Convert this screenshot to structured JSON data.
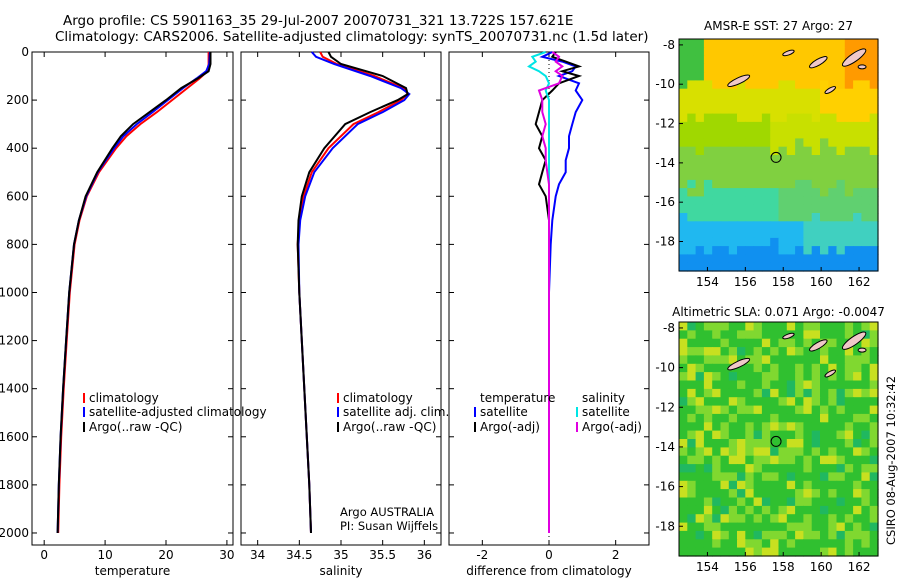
{
  "header": {
    "line1": "Argo profile: CS 5901163_35 29-Jul-2007 20070731_321 13.722S 157.621E",
    "line2": "Climatology: CARS2006. Satellite-adjusted climatology: synTS_20070731.nc (1.5d later)"
  },
  "footer": {
    "credit": "CSIRO 08-Aug-2007 10:32:42"
  },
  "colors": {
    "climatology": "#ff0000",
    "satellite": "#0000ff",
    "argo": "#000000",
    "sat_diff_sal": "#00e5e5",
    "argo_diff_sal": "#e000e0"
  },
  "chart_data": [
    {
      "id": "temperature",
      "type": "line",
      "xlabel": "temperature",
      "ylabel": "",
      "xlim": [
        -2,
        31
      ],
      "ylim": [
        2050,
        0
      ],
      "xticks": [
        0,
        10,
        20,
        30
      ],
      "yticks": [
        0,
        200,
        400,
        600,
        800,
        1000,
        1200,
        1400,
        1600,
        1800,
        2000
      ],
      "legend": [
        "climatology",
        "satellite-adjusted climatology",
        "Argo(..raw -QC)"
      ],
      "depth": [
        0,
        50,
        80,
        110,
        150,
        200,
        250,
        300,
        350,
        400,
        500,
        600,
        700,
        800,
        1000,
        1200,
        1400,
        1600,
        1800,
        2000
      ],
      "series": [
        {
          "name": "climatology",
          "values": [
            27.0,
            27.0,
            26.8,
            25.5,
            23.5,
            21.0,
            18.5,
            15.8,
            13.5,
            11.8,
            9.0,
            7.0,
            5.8,
            5.0,
            4.2,
            3.7,
            3.2,
            2.8,
            2.5,
            2.3
          ]
        },
        {
          "name": "satellite-adjusted climatology",
          "values": [
            27.2,
            27.1,
            26.6,
            25.0,
            22.8,
            20.3,
            17.8,
            15.2,
            13.0,
            11.5,
            8.8,
            6.9,
            5.7,
            4.9,
            4.1,
            3.6,
            3.1,
            2.7,
            2.4,
            2.2
          ]
        },
        {
          "name": "Argo(..raw -QC)",
          "values": [
            27.3,
            27.3,
            27.0,
            25.2,
            22.5,
            20.0,
            17.3,
            14.6,
            12.6,
            11.2,
            8.7,
            6.8,
            5.7,
            4.9,
            4.1,
            3.6,
            3.1,
            2.7,
            2.4,
            2.2
          ]
        }
      ]
    },
    {
      "id": "salinity",
      "type": "line",
      "xlabel": "salinity",
      "ylabel": "",
      "xlim": [
        33.8,
        36.2
      ],
      "ylim": [
        2050,
        0
      ],
      "xticks": [
        34,
        34.5,
        35,
        35.5,
        36
      ],
      "xtick_labels": [
        "34",
        "34.5",
        "35",
        "35.5",
        "36"
      ],
      "legend": [
        "climatology",
        "satellite adj. clim.",
        "Argo(..raw -QC)"
      ],
      "annotation": [
        "Argo AUSTRALIA",
        "PI: Susan Wijffels"
      ],
      "depth": [
        0,
        20,
        50,
        100,
        150,
        175,
        200,
        250,
        300,
        400,
        500,
        600,
        700,
        800,
        1000,
        1200,
        1400,
        1600,
        1800,
        2000
      ],
      "series": [
        {
          "name": "climatology",
          "values": [
            34.75,
            34.78,
            34.95,
            35.4,
            35.75,
            35.8,
            35.72,
            35.45,
            35.15,
            34.85,
            34.65,
            34.55,
            34.5,
            34.48,
            34.5,
            34.53,
            34.56,
            34.59,
            34.62,
            34.64
          ]
        },
        {
          "name": "satellite adj. clim.",
          "values": [
            34.65,
            34.7,
            34.92,
            35.35,
            35.72,
            35.82,
            35.76,
            35.5,
            35.2,
            34.9,
            34.68,
            34.57,
            34.51,
            34.49,
            34.5,
            34.53,
            34.56,
            34.59,
            34.62,
            34.64
          ]
        },
        {
          "name": "Argo(..raw -QC)",
          "values": [
            34.85,
            34.88,
            35.0,
            35.5,
            35.78,
            35.8,
            35.68,
            35.35,
            35.05,
            34.8,
            34.62,
            34.53,
            34.49,
            34.48,
            34.5,
            34.53,
            34.56,
            34.59,
            34.62,
            34.64
          ]
        }
      ]
    },
    {
      "id": "difference",
      "type": "line",
      "xlabel": "difference from climatology",
      "ylabel": "",
      "xlim": [
        -3,
        3
      ],
      "ylim": [
        2050,
        0
      ],
      "xticks": [
        -2,
        0,
        2
      ],
      "legend": [
        "temperature",
        "satellite",
        "Argo(-adj)",
        "salinity",
        "satellite",
        "Argo(-adj)"
      ],
      "depth": [
        0,
        20,
        40,
        60,
        80,
        100,
        130,
        160,
        200,
        250,
        300,
        350,
        400,
        450,
        500,
        550,
        600,
        700,
        800,
        1000,
        1200,
        1500,
        2000
      ],
      "series": [
        {
          "name": "temperature satellite",
          "values": [
            0.1,
            -0.2,
            0.4,
            0.8,
            0.7,
            0.3,
            0.9,
            0.8,
            1.0,
            0.8,
            0.7,
            0.6,
            0.6,
            0.5,
            0.5,
            0.3,
            0.2,
            0.1,
            0.05,
            0.0,
            0.0,
            0.0,
            0.0
          ]
        },
        {
          "name": "temperature Argo(-adj)",
          "values": [
            0.2,
            0.1,
            0.5,
            0.9,
            0.4,
            0.9,
            0.3,
            0.1,
            -0.2,
            -0.3,
            -0.4,
            -0.2,
            -0.3,
            -0.1,
            -0.2,
            -0.3,
            -0.1,
            0.0,
            0.0,
            0.0,
            0.0,
            0.0,
            0.0
          ]
        },
        {
          "name": "salinity satellite",
          "values": [
            -0.1,
            -0.5,
            -0.4,
            -0.6,
            -0.3,
            -0.1,
            0.0,
            -0.1,
            0.0,
            0.0,
            0.0,
            0.0,
            0.0,
            0.0,
            0.0,
            0.0,
            0.0,
            0.0,
            0.0,
            0.0,
            0.0,
            0.0,
            0.0
          ]
        },
        {
          "name": "salinity Argo(-adj)",
          "values": [
            0.1,
            0.3,
            0.2,
            0.4,
            0.2,
            0.4,
            0.3,
            -0.3,
            -0.2,
            -0.2,
            -0.1,
            -0.2,
            -0.1,
            -0.1,
            -0.05,
            0.0,
            0.0,
            0.0,
            0.0,
            0.0,
            0.0,
            0.0,
            0.0
          ]
        }
      ]
    },
    {
      "id": "sst_map",
      "type": "heatmap",
      "title": "AMSR-E SST: 27 Argo: 27",
      "xlim": [
        152.5,
        163
      ],
      "ylim": [
        -19.5,
        -7.7
      ],
      "xticks": [
        154,
        156,
        158,
        160,
        162
      ],
      "yticks": [
        -8,
        -10,
        -12,
        -14,
        -16,
        -18
      ],
      "marker": {
        "lon": 157.621,
        "lat": -13.722
      }
    },
    {
      "id": "sla_map",
      "type": "heatmap",
      "title": "Altimetric SLA: 0.071 Argo: -0.0047",
      "xlim": [
        152.5,
        163
      ],
      "ylim": [
        -19.5,
        -7.7
      ],
      "xticks": [
        154,
        156,
        158,
        160,
        162
      ],
      "yticks": [
        -8,
        -10,
        -12,
        -14,
        -16,
        -18
      ],
      "marker": {
        "lon": 157.621,
        "lat": -13.722
      }
    }
  ]
}
